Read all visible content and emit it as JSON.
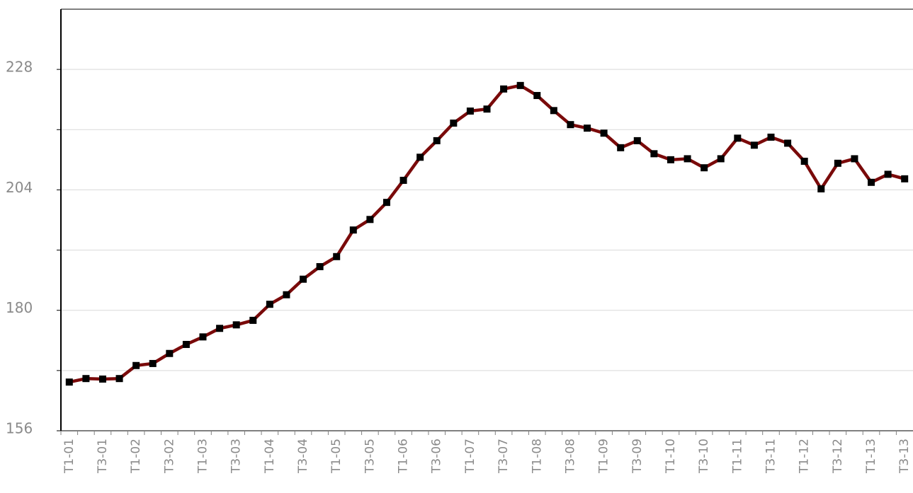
{
  "chart_data": {
    "type": "line",
    "categories": [
      "T1-01",
      null,
      "T3-01",
      null,
      "T1-02",
      null,
      "T3-02",
      null,
      "T1-03",
      null,
      "T3-03",
      null,
      "T1-04",
      null,
      "T3-04",
      null,
      "T1-05",
      null,
      "T3-05",
      null,
      "T1-06",
      null,
      "T3-06",
      null,
      "T1-07",
      null,
      "T3-07",
      null,
      "T1-08",
      null,
      "T3-08",
      null,
      "T1-09",
      null,
      "T3-09",
      null,
      "T1-10",
      null,
      "T3-10",
      null,
      "T1-11",
      null,
      "T3-11",
      null,
      "T1-12",
      null,
      "T3-12",
      null,
      "T1-13",
      null,
      "T3-13"
    ],
    "series": [
      {
        "color": "#7a0a0a",
        "marker_color": "#000000",
        "values": [
          165.7,
          166.4,
          166.3,
          166.4,
          169.0,
          169.4,
          171.4,
          173.2,
          174.7,
          176.4,
          177.1,
          178.0,
          181.2,
          183.1,
          186.2,
          188.7,
          190.7,
          196.0,
          198.1,
          201.5,
          205.9,
          210.5,
          213.8,
          217.3,
          219.7,
          220.1,
          224.1,
          224.8,
          222.8,
          219.8,
          217.0,
          216.3,
          215.3,
          212.4,
          213.8,
          211.2,
          210.0,
          210.2,
          208.4,
          210.2,
          214.3,
          212.9,
          214.5,
          213.3,
          209.7,
          204.2,
          209.3,
          210.2,
          205.5,
          207.1,
          206.2
        ]
      }
    ],
    "ylim": [
      156,
      240
    ],
    "yticks": [
      156,
      180,
      204,
      228
    ],
    "y_minor_ticks": [
      168,
      192,
      216
    ],
    "grid": true
  }
}
